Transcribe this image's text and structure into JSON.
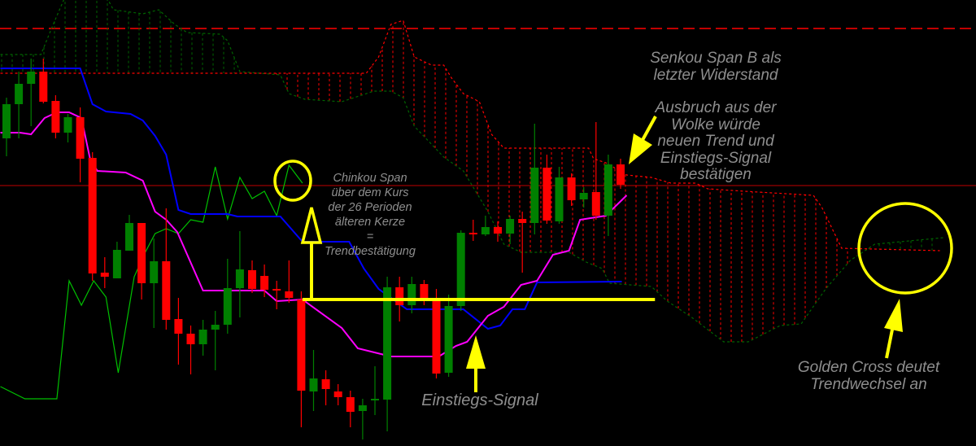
{
  "chart_data": {
    "type": "candlestick",
    "indicator": "Ichimoku Kinko Hyo",
    "colors": {
      "background": "#000000",
      "bull_candle": "#008000",
      "bear_candle": "#ff0000",
      "tenkan_sen": "#ff00ff",
      "kijun_sen": "#0000ff",
      "chinkou_span": "#00c000",
      "senkou_span_a": "#006400",
      "senkou_span_b": "#ff0000",
      "annotation": "#ffff00",
      "annotation_text": "#8e8e8e"
    },
    "candles_ohlc": [
      [
        37.8,
        42.8,
        35.6,
        42.0
      ],
      [
        42.0,
        46.0,
        37.8,
        44.5
      ],
      [
        44.5,
        47.6,
        39.3,
        46.0
      ],
      [
        46.0,
        47.6,
        42.1,
        42.3
      ],
      [
        42.4,
        43.1,
        37.8,
        38.5
      ],
      [
        38.5,
        40.8,
        37.3,
        40.4
      ],
      [
        40.4,
        41.6,
        32.4,
        35.3
      ],
      [
        35.4,
        36.1,
        20.3,
        21.2
      ],
      [
        21.3,
        23.2,
        19.4,
        20.8
      ],
      [
        20.6,
        25.1,
        20.6,
        24.1
      ],
      [
        24.0,
        28.4,
        24.0,
        27.4
      ],
      [
        27.4,
        27.4,
        18.0,
        20.0
      ],
      [
        20.0,
        25.5,
        14.5,
        22.7
      ],
      [
        22.7,
        29.2,
        14.3,
        15.5
      ],
      [
        15.6,
        18.2,
        10.0,
        13.8
      ],
      [
        13.8,
        14.8,
        8.8,
        12.5
      ],
      [
        12.5,
        15.5,
        11.1,
        14.3
      ],
      [
        14.3,
        16.6,
        9.3,
        14.9
      ],
      [
        14.9,
        23.0,
        13.8,
        19.4
      ],
      [
        19.4,
        26.4,
        15.8,
        21.7
      ],
      [
        21.6,
        22.8,
        18.8,
        19.3
      ],
      [
        20.9,
        22.3,
        18.3,
        19.2
      ],
      [
        19.3,
        20.3,
        16.8,
        19.1
      ],
      [
        19.0,
        22.8,
        17.6,
        18.2
      ],
      [
        18.0,
        19.0,
        2.3,
        6.8
      ],
      [
        6.7,
        11.8,
        4.3,
        8.3
      ],
      [
        8.2,
        9.3,
        5.0,
        7.0
      ],
      [
        6.7,
        7.6,
        5.0,
        6.0
      ],
      [
        6.0,
        6.8,
        2.3,
        4.2
      ],
      [
        4.3,
        5.8,
        0.8,
        5.0
      ],
      [
        5.7,
        9.8,
        3.8,
        5.8
      ],
      [
        5.7,
        20.8,
        1.8,
        19.5
      ],
      [
        19.5,
        20.8,
        15.3,
        17.3
      ],
      [
        17.3,
        20.8,
        16.3,
        19.9
      ],
      [
        19.9,
        20.4,
        17.3,
        18.0
      ],
      [
        18.0,
        19.3,
        8.3,
        8.9
      ],
      [
        9.0,
        18.6,
        8.5,
        17.2
      ],
      [
        17.2,
        26.5,
        16.6,
        26.2
      ],
      [
        26.2,
        27.8,
        25.2,
        26.0
      ],
      [
        26.0,
        28.3,
        25.8,
        26.9
      ],
      [
        26.9,
        27.6,
        25.1,
        26.1
      ],
      [
        26.1,
        28.3,
        24.8,
        27.9
      ],
      [
        27.9,
        28.8,
        21.3,
        27.4
      ],
      [
        27.4,
        39.6,
        26.0,
        34.2
      ],
      [
        34.2,
        35.8,
        27.3,
        27.7
      ],
      [
        27.6,
        34.3,
        27.3,
        33.0
      ],
      [
        33.0,
        33.5,
        29.5,
        30.2
      ],
      [
        30.3,
        31.8,
        29.3,
        31.1
      ],
      [
        31.2,
        39.8,
        27.8,
        28.3
      ],
      [
        28.3,
        35.8,
        25.8,
        34.6
      ],
      [
        34.6,
        35.3,
        31.6,
        32.1
      ]
    ],
    "tenkan_sen": [
      [
        -0.5,
        38.5
      ],
      [
        1.1,
        38.5
      ],
      [
        2,
        38.3
      ],
      [
        3.1,
        40.3
      ],
      [
        4.1,
        41.0
      ],
      [
        5.1,
        41.0
      ],
      [
        6.1,
        40.3
      ],
      [
        6.8,
        35.3
      ],
      [
        7.4,
        33.8
      ],
      [
        9.7,
        33.6
      ],
      [
        11.1,
        32.6
      ],
      [
        12.1,
        28.8
      ],
      [
        13,
        27.8
      ],
      [
        13.9,
        26.3
      ],
      [
        16,
        19.1
      ],
      [
        21,
        19.1
      ],
      [
        22,
        17.8
      ],
      [
        24.1,
        18.0
      ],
      [
        27.3,
        14.5
      ],
      [
        28.6,
        12.0
      ],
      [
        31.3,
        11.0
      ],
      [
        35.2,
        11.0
      ],
      [
        36.6,
        12.3
      ],
      [
        37.5,
        12.8
      ],
      [
        39.2,
        16.0
      ],
      [
        40.5,
        17.1
      ],
      [
        41.9,
        19.8
      ],
      [
        43.2,
        20.3
      ],
      [
        44.5,
        23.5
      ],
      [
        45.8,
        24.0
      ],
      [
        46.7,
        27.8
      ],
      [
        48.8,
        28.3
      ],
      [
        50.5,
        30.8
      ]
    ],
    "kijun_sen": [
      [
        -0.5,
        46.4
      ],
      [
        6,
        46.4
      ],
      [
        7,
        42.0
      ],
      [
        8.1,
        41.1
      ],
      [
        10.1,
        40.8
      ],
      [
        11.1,
        40.0
      ],
      [
        12.1,
        38.1
      ],
      [
        13,
        35.8
      ],
      [
        14,
        29.0
      ],
      [
        15,
        28.5
      ],
      [
        18,
        28.5
      ],
      [
        18.8,
        28.2
      ],
      [
        22.3,
        28.2
      ],
      [
        24.1,
        25.1
      ],
      [
        27.9,
        25.1
      ],
      [
        29.1,
        21.8
      ],
      [
        30.3,
        19.3
      ],
      [
        32.6,
        16.8
      ],
      [
        37.2,
        16.8
      ],
      [
        39.2,
        14.4
      ],
      [
        40.2,
        14.8
      ],
      [
        41.2,
        16.8
      ],
      [
        42.2,
        16.8
      ],
      [
        43.2,
        20.1
      ],
      [
        50.1,
        20.2
      ]
    ],
    "chinkou_span": [
      [
        -0.5,
        7.3
      ],
      [
        1.5,
        5.8
      ],
      [
        4.1,
        5.8
      ],
      [
        5.1,
        20.3
      ],
      [
        6.1,
        17.3
      ],
      [
        7.1,
        20.3
      ],
      [
        8.1,
        18.3
      ],
      [
        9.1,
        9.0
      ],
      [
        10.4,
        20.8
      ],
      [
        11.3,
        23.8
      ],
      [
        12.1,
        26.1
      ],
      [
        13,
        26.7
      ],
      [
        14,
        26.1
      ],
      [
        15,
        27.8
      ],
      [
        16,
        27.5
      ],
      [
        17,
        34.3
      ],
      [
        18,
        27.9
      ],
      [
        19,
        33.0
      ],
      [
        20,
        30.4
      ],
      [
        21,
        31.3
      ],
      [
        22,
        28.3
      ],
      [
        23,
        34.5
      ],
      [
        24.1,
        32.3
      ]
    ],
    "senkou_span_a": [
      [
        -0.5,
        48.1
      ],
      [
        2.8,
        48.1
      ],
      [
        3.8,
        51.8
      ],
      [
        4.8,
        55.3
      ],
      [
        8.1,
        55.3
      ],
      [
        8.7,
        53.6
      ],
      [
        11.1,
        53.1
      ],
      [
        12.4,
        53.6
      ],
      [
        13.7,
        51.8
      ],
      [
        14.7,
        50.8
      ],
      [
        17.4,
        50.6
      ],
      [
        18,
        49.8
      ],
      [
        19,
        46.0
      ],
      [
        22.3,
        45.6
      ],
      [
        23,
        43.3
      ],
      [
        24.3,
        42.6
      ],
      [
        27.3,
        42.3
      ],
      [
        29.9,
        43.6
      ],
      [
        31.3,
        43.6
      ],
      [
        32.3,
        42.8
      ],
      [
        33.2,
        39.3
      ],
      [
        35.6,
        35.5
      ],
      [
        37.2,
        33.8
      ],
      [
        39.2,
        28.8
      ],
      [
        40.5,
        24.8
      ],
      [
        41.9,
        23.8
      ],
      [
        45.8,
        23.8
      ],
      [
        47.2,
        22.6
      ],
      [
        48.5,
        21.8
      ],
      [
        49.1,
        20.0
      ],
      [
        52.5,
        19.6
      ],
      [
        53.8,
        17.8
      ],
      [
        55.8,
        15.8
      ],
      [
        58.4,
        12.8
      ],
      [
        60.4,
        12.8
      ],
      [
        63,
        14.8
      ],
      [
        64.7,
        15.0
      ],
      [
        66.7,
        19.3
      ],
      [
        68.7,
        22.8
      ],
      [
        70.7,
        24.8
      ],
      [
        76.3,
        25.6
      ]
    ],
    "senkou_span_b": [
      [
        -0.5,
        45.8
      ],
      [
        29.3,
        45.8
      ],
      [
        30.3,
        47.8
      ],
      [
        31.3,
        51.8
      ],
      [
        32.3,
        52.3
      ],
      [
        33.2,
        47.8
      ],
      [
        34.6,
        46.8
      ],
      [
        35.6,
        46.8
      ],
      [
        36.2,
        45.3
      ],
      [
        37.2,
        43.3
      ],
      [
        38.5,
        42.3
      ],
      [
        39.5,
        38.3
      ],
      [
        40.5,
        36.6
      ],
      [
        47.4,
        36.6
      ],
      [
        47.8,
        35.3
      ],
      [
        48.8,
        34.8
      ],
      [
        50.5,
        33.3
      ],
      [
        52.5,
        33.0
      ],
      [
        54.1,
        32.3
      ],
      [
        56.1,
        32.3
      ],
      [
        57.1,
        31.6
      ],
      [
        60.1,
        31.3
      ],
      [
        65.7,
        30.8
      ],
      [
        66.4,
        29.3
      ],
      [
        68,
        24.3
      ],
      [
        76,
        24.0
      ]
    ],
    "horizontal_levels": [
      {
        "value": 51.3,
        "style": "dashed",
        "color": "#ff0000"
      },
      {
        "value": 32.0,
        "style": "solid",
        "color": "#c00000"
      }
    ],
    "yellow_level": {
      "value": 18.0,
      "from_bar": 24.1,
      "to_bar": 52.8
    },
    "ylim": [
      0,
      54.8
    ],
    "grid": false,
    "legend": "none"
  },
  "annotations": {
    "chinkou": [
      "Chinkou Span",
      "über dem Kurs",
      "der 26 Perioden",
      "älteren Kerze",
      "=",
      "Trendbestätigung"
    ],
    "senkou_b": [
      "Senkou Span B als",
      "letzter Widerstand"
    ],
    "breakout": [
      "Ausbruch aus der",
      "Wolke würde",
      "neuen Trend und",
      "Einstiegs-Signal",
      "bestätigen"
    ],
    "entry": [
      "Einstiegs-Signal"
    ],
    "golden_cross": [
      "Golden Cross deutet",
      "Trendwechsel an"
    ]
  }
}
